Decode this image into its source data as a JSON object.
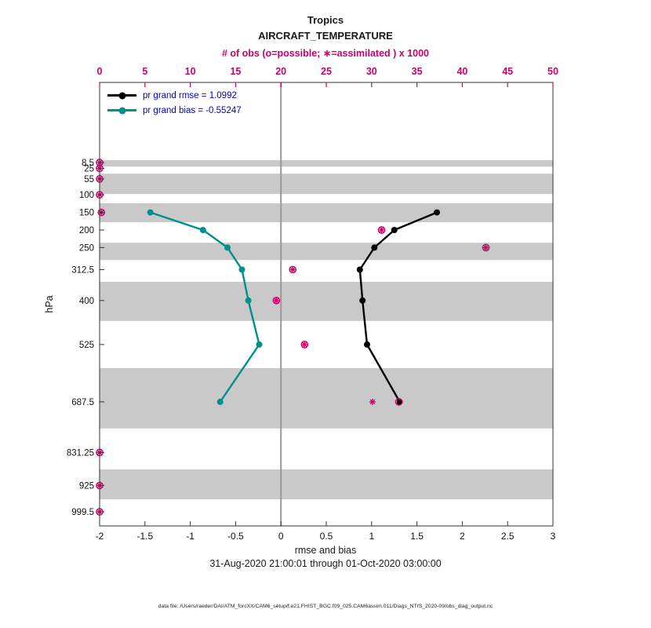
{
  "header": {
    "region": "Tropics",
    "variable": "AIRCRAFT_TEMPERATURE",
    "obs_axis_label": "# of obs (o=possible; ∗=assimilated ) x 1000"
  },
  "legend": [
    {
      "key": "rmse",
      "label": "pr grand rmse = 1.0992",
      "color": "#000000"
    },
    {
      "key": "bias",
      "label": "pr grand bias = -0.55247",
      "color": "#008f8f"
    }
  ],
  "axes": {
    "ylabel": "hPa",
    "xlabel": "rmse and bias",
    "bottom_ticks": [
      -2,
      -1.5,
      -1,
      -0.5,
      0,
      0.5,
      1,
      1.5,
      2,
      2.5,
      3
    ],
    "top_ticks": [
      0,
      5,
      10,
      15,
      20,
      25,
      30,
      35,
      40,
      45,
      50
    ],
    "pressure_levels": [
      8.5,
      25,
      55,
      100,
      150,
      200,
      250,
      312.5,
      400,
      525,
      687.5,
      831.25,
      925,
      999.5
    ]
  },
  "footer": {
    "xlabel": "rmse and bias",
    "date_range": "31-Aug-2020 21:00:01 through 01-Oct-2020 03:00:00",
    "data_file": "data file: /Users/raeder/DAI/ATM_forcXX/CAM6_setup/f.e21.FHIST_BGC.f09_025.CAM6assim.011/Diags_NTrS_2020-09/obs_diag_output.nc"
  },
  "chart_data": {
    "type": "line",
    "title": "Tropics AIRCRAFT_TEMPERATURE",
    "xlabel": "rmse and bias",
    "ylabel": "hPa",
    "x_range_bottom": [
      -2,
      3
    ],
    "x_range_top_obs_thousands": [
      0,
      50
    ],
    "y_axis": {
      "orientation": "pressure-increasing-downward",
      "linear": true,
      "range_hPa": [
        0,
        1035
      ]
    },
    "grid": false,
    "legend_position": "top-left-inside",
    "series": [
      {
        "key": "rmse",
        "name": "pr grand rmse = 1.0992",
        "color": "#000000",
        "levels_hPa": [
          150,
          200,
          250,
          312.5,
          400,
          525,
          687.5
        ],
        "values": [
          1.72,
          1.25,
          1.03,
          0.87,
          0.9,
          0.95,
          1.31
        ]
      },
      {
        "key": "bias",
        "name": "pr grand bias = -0.55247",
        "color": "#008f8f",
        "levels_hPa": [
          150,
          200,
          250,
          312.5,
          400,
          525,
          687.5
        ],
        "values": [
          -1.44,
          -0.86,
          -0.59,
          -0.43,
          -0.36,
          -0.24,
          -0.67
        ]
      }
    ],
    "obs_counts_thousands": [
      {
        "level": 8.5,
        "possible": 0,
        "assimilated": 0
      },
      {
        "level": 25,
        "possible": 0,
        "assimilated": 0
      },
      {
        "level": 55,
        "possible": 0,
        "assimilated": 0
      },
      {
        "level": 100,
        "possible": 0,
        "assimilated": 0
      },
      {
        "level": 150,
        "possible": 0.2,
        "assimilated": 0.2
      },
      {
        "level": 200,
        "possible": 31.1,
        "assimilated": 31.1
      },
      {
        "level": 250,
        "possible": 42.6,
        "assimilated": 42.6
      },
      {
        "level": 312.5,
        "possible": 21.3,
        "assimilated": 21.3
      },
      {
        "level": 400,
        "possible": 19.5,
        "assimilated": 19.5
      },
      {
        "level": 525,
        "possible": 22.6,
        "assimilated": 22.6
      },
      {
        "level": 687.5,
        "possible": 33.0,
        "assimilated": 30.1
      },
      {
        "level": 831.25,
        "possible": 0,
        "assimilated": 0
      },
      {
        "level": 925,
        "possible": 0,
        "assimilated": 0
      },
      {
        "level": 999.5,
        "possible": 0,
        "assimilated": 0
      }
    ],
    "shaded_layers_hPa": [
      [
        2,
        20
      ],
      [
        40,
        98
      ],
      [
        124,
        178
      ],
      [
        236,
        285
      ],
      [
        347,
        458
      ],
      [
        592,
        763
      ],
      [
        879,
        964
      ]
    ],
    "zero_line_x": 0,
    "colors": {
      "obs": "#cc0066",
      "rmse": "#000000",
      "bias": "#008f8f",
      "band": "#c9c9c9",
      "zero_line": "#999999",
      "axis": "#333333",
      "legend_text": "#0000cc"
    }
  }
}
